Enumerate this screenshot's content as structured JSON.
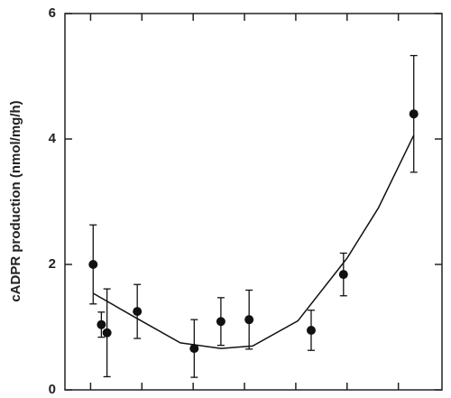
{
  "chart_data": {
    "type": "scatter",
    "ylabel": "cADPR production (nmol/mg/h)",
    "xlim": [
      -0.5,
      6.85
    ],
    "xticks": [
      0,
      1,
      2,
      3,
      4,
      5,
      6
    ],
    "ylim": [
      0,
      6
    ],
    "yticks": [
      0,
      2,
      4,
      6
    ],
    "series": [
      {
        "type": "scatter",
        "color": "#111111",
        "x": [
          0.05,
          0.21,
          0.32,
          0.91,
          2.02,
          2.54,
          3.09,
          4.3,
          4.93,
          6.3
        ],
        "values": [
          2.0,
          1.04,
          0.91,
          1.25,
          0.66,
          1.09,
          1.12,
          0.95,
          1.84,
          4.4
        ],
        "errors": [
          0.63,
          0.2,
          0.7,
          0.43,
          0.46,
          0.38,
          0.47,
          0.32,
          0.34,
          0.93
        ]
      },
      {
        "type": "line",
        "color": "#111111",
        "x": [
          0.05,
          0.88,
          1.75,
          2.54,
          3.16,
          4.04,
          5.0,
          5.61,
          6.3
        ],
        "values": [
          1.54,
          1.15,
          0.75,
          0.66,
          0.7,
          1.1,
          2.1,
          2.9,
          4.06
        ]
      }
    ]
  }
}
